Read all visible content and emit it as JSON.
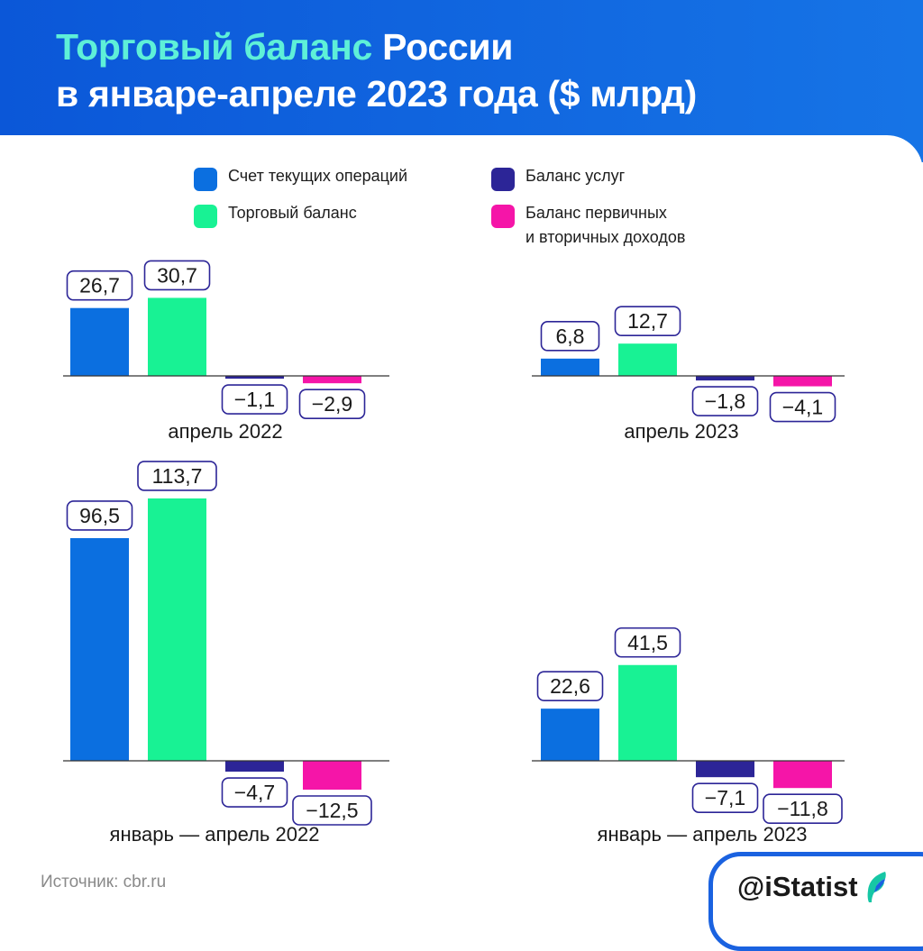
{
  "title": {
    "part1": "Торговый баланс",
    "part2": " России",
    "line2": "в январе-апреле 2023 года ($ млрд)"
  },
  "legend": [
    {
      "label": "Счет текущих операций",
      "color": "#0b6fe0"
    },
    {
      "label": "Баланс услуг",
      "color": "#2c2597"
    },
    {
      "label": "Торговый баланс",
      "color": "#18f294"
    },
    {
      "label": "Баланс первичных\nи вторичных доходов",
      "color": "#f515a8"
    }
  ],
  "chart_data": [
    {
      "type": "bar",
      "title": "апрель 2022",
      "categories": [
        "Счет текущих операций",
        "Торговый баланс",
        "Баланс услуг",
        "Баланс первичных и вторичных доходов"
      ],
      "values": [
        26.7,
        30.7,
        -1.1,
        -2.9
      ],
      "labels": [
        "26,7",
        "30,7",
        "−1,1",
        "−2,9"
      ]
    },
    {
      "type": "bar",
      "title": "апрель 2023",
      "categories": [
        "Счет текущих операций",
        "Торговый баланс",
        "Баланс услуг",
        "Баланс первичных и вторичных доходов"
      ],
      "values": [
        6.8,
        12.7,
        -1.8,
        -4.1
      ],
      "labels": [
        "6,8",
        "12,7",
        "−1,8",
        "−4,1"
      ]
    },
    {
      "type": "bar",
      "title": "январь — апрель 2022",
      "categories": [
        "Счет текущих операций",
        "Торговый баланс",
        "Баланс услуг",
        "Баланс первичных и вторичных доходов"
      ],
      "values": [
        96.5,
        113.7,
        -4.7,
        -12.5
      ],
      "labels": [
        "96,5",
        "113,7",
        "−4,7",
        "−12,5"
      ]
    },
    {
      "type": "bar",
      "title": "январь — апрель 2023",
      "categories": [
        "Счет текущих операций",
        "Торговый баланс",
        "Баланс услуг",
        "Баланс первичных и вторичных доходов"
      ],
      "values": [
        22.6,
        41.5,
        -7.1,
        -11.8
      ],
      "labels": [
        "22,6",
        "41,5",
        "−7,1",
        "−11,8"
      ]
    }
  ],
  "source": "Источник: cbr.ru",
  "brand": "@iStatist"
}
